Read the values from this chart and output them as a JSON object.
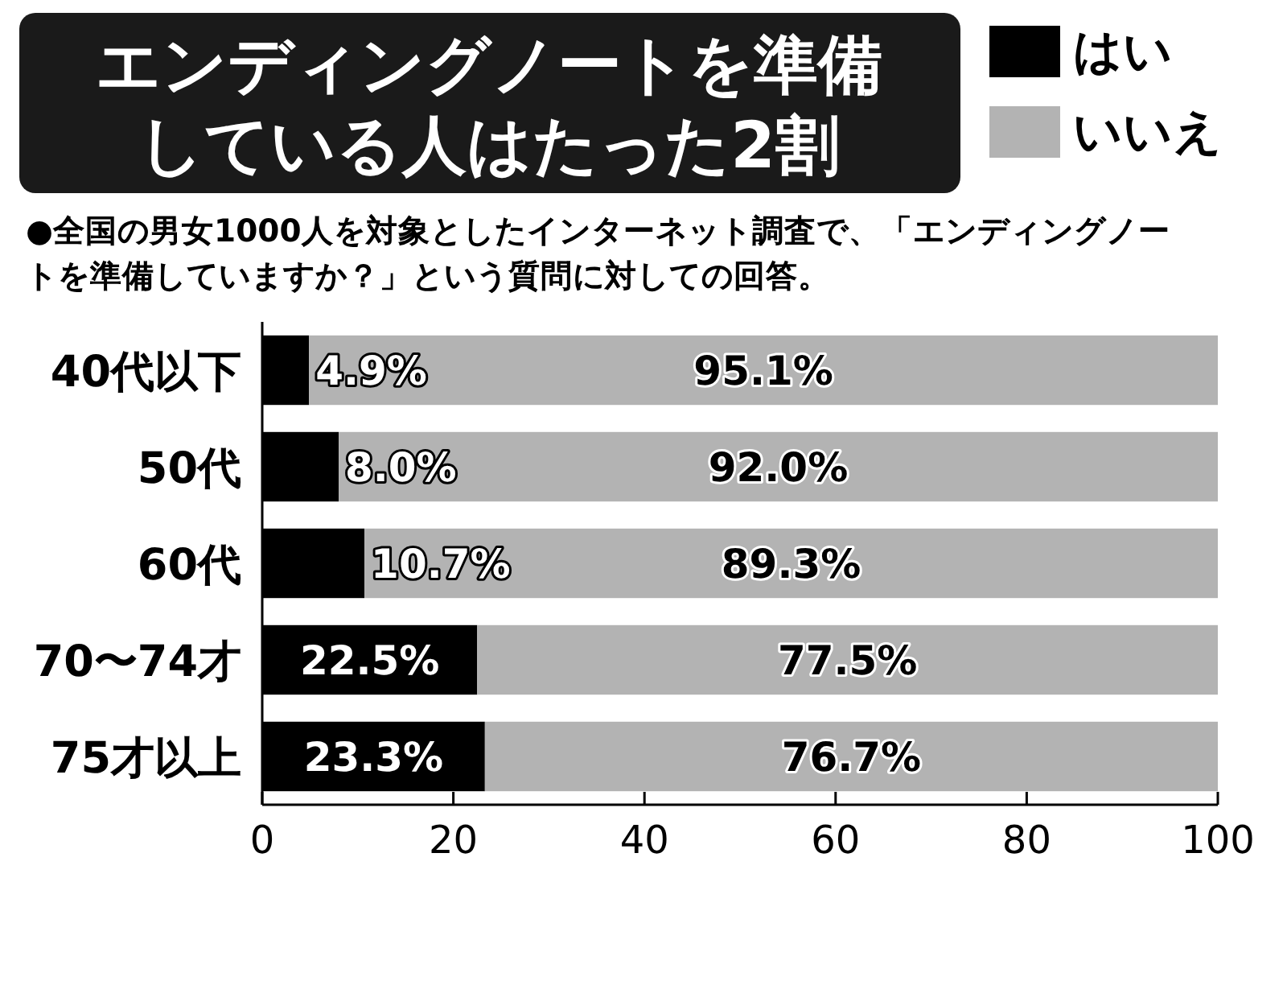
{
  "chart_data": {
    "type": "bar",
    "orientation": "horizontal",
    "stacked": true,
    "title": "エンディングノートを準備している人はたった2割",
    "subtitle": "●全国の男女1000人を対象としたインターネット調査で、「エンディングノートを準備していますか？」という質問に対しての回答。",
    "categories": [
      "40代以下",
      "50代",
      "60代",
      "70〜74才",
      "75才以上"
    ],
    "series": [
      {
        "name": "はい",
        "color": "#000000",
        "values": [
          4.9,
          8.0,
          10.7,
          22.5,
          23.3
        ],
        "value_labels": [
          "4.9%",
          "8.0%",
          "10.7%",
          "22.5%",
          "23.3%"
        ]
      },
      {
        "name": "いいえ",
        "color": "#b3b3b3",
        "values": [
          95.1,
          92.0,
          89.3,
          77.5,
          76.7
        ],
        "value_labels": [
          "95.1%",
          "92.0%",
          "89.3%",
          "77.5%",
          "76.7%"
        ]
      }
    ],
    "xlim": [
      0,
      100
    ],
    "xticks": [
      0,
      20,
      40,
      60,
      80,
      100
    ],
    "legend": "top right"
  }
}
